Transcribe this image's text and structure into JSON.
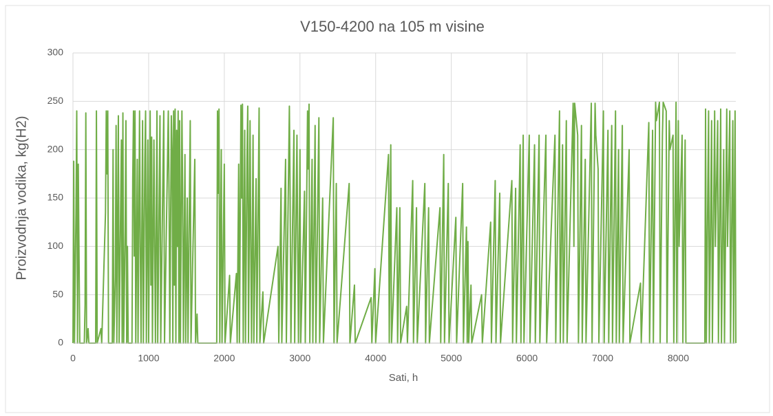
{
  "chart_data": {
    "type": "line",
    "title": "V150-4200 na 105 m visine",
    "x_label": "Sati, h",
    "y_label": "Proizvodnja vodika, kg(H2)",
    "xlim": [
      0,
      8760
    ],
    "xticks": [
      0,
      1000,
      2000,
      3000,
      4000,
      5000,
      6000,
      7000,
      8000
    ],
    "ylim": [
      0,
      300
    ],
    "yticks": [
      0,
      50,
      100,
      150,
      200,
      250,
      300
    ],
    "grid": true,
    "series": [
      {
        "color": "#70ad47",
        "x": [
          0,
          10,
          20,
          40,
          50,
          60,
          70,
          90,
          150,
          160,
          170,
          180,
          200,
          210,
          300,
          310,
          320,
          370,
          380,
          430,
          440,
          450,
          460,
          470,
          520,
          530,
          540,
          560,
          570,
          580,
          600,
          610,
          640,
          650,
          660,
          670,
          690,
          700,
          710,
          720,
          730,
          780,
          790,
          800,
          810,
          820,
          830,
          850,
          860,
          880,
          890,
          900,
          920,
          930,
          950,
          960,
          970,
          990,
          1000,
          1020,
          1030,
          1040,
          1050,
          1070,
          1080,
          1090,
          1110,
          1120,
          1150,
          1160,
          1200,
          1210,
          1260,
          1270,
          1280,
          1300,
          1310,
          1320,
          1330,
          1340,
          1350,
          1360,
          1370,
          1380,
          1390,
          1400,
          1410,
          1420,
          1440,
          1450,
          1460,
          1480,
          1490,
          1510,
          1520,
          1550,
          1560,
          1610,
          1620,
          1640,
          1650,
          1900,
          1910,
          1920,
          1930,
          1940,
          1960,
          1970,
          2000,
          2010,
          2070,
          2080,
          2160,
          2170,
          2190,
          2200,
          2220,
          2230,
          2240,
          2250,
          2270,
          2280,
          2300,
          2310,
          2320,
          2340,
          2350,
          2360,
          2380,
          2390,
          2420,
          2430,
          2460,
          2470,
          2510,
          2520,
          2710,
          2720,
          2750,
          2760,
          2810,
          2820,
          2860,
          2870,
          2880,
          2920,
          2930,
          2960,
          2970,
          2980,
          3000,
          3010,
          3060,
          3070,
          3100,
          3110,
          3120,
          3130,
          3160,
          3170,
          3200,
          3210,
          3250,
          3260,
          3300,
          3310,
          3440,
          3450,
          3480,
          3490,
          3650,
          3660,
          3720,
          3730,
          3940,
          3950,
          3990,
          4000,
          4170,
          4180,
          4200,
          4210,
          4280,
          4290,
          4320,
          4330,
          4410,
          4420,
          4490,
          4500,
          4540,
          4550,
          4650,
          4660,
          4700,
          4710,
          4850,
          4860,
          4900,
          4910,
          4960,
          4970,
          5060,
          5070,
          5150,
          5160,
          5200,
          5210,
          5220,
          5230,
          5260,
          5270,
          5400,
          5410,
          5520,
          5530,
          5580,
          5590,
          5640,
          5650,
          5800,
          5810,
          5850,
          5860,
          5910,
          5920,
          5950,
          5960,
          6030,
          6040,
          6100,
          6110,
          6160,
          6170,
          6250,
          6260,
          6370,
          6380,
          6430,
          6440,
          6470,
          6480,
          6520,
          6530,
          6610,
          6620,
          6630,
          6670,
          6680,
          6720,
          6730,
          6770,
          6780,
          6850,
          6860,
          6900,
          6910,
          6940,
          6950,
          7010,
          7020,
          7070,
          7080,
          7120,
          7130,
          7170,
          7180,
          7210,
          7220,
          7260,
          7270,
          7350,
          7360,
          7500,
          7510,
          7610,
          7620,
          7660,
          7670,
          7700,
          7710,
          7750,
          7760,
          7790,
          7800,
          7840,
          7850,
          7880,
          7890,
          7930,
          7940,
          7970,
          7980,
          8000,
          8010,
          8050,
          8060,
          8090,
          8100,
          8110,
          8350,
          8360,
          8370,
          8400,
          8410,
          8440,
          8450,
          8480,
          8490,
          8520,
          8530,
          8560,
          8570,
          8600,
          8610,
          8640,
          8650,
          8680,
          8690,
          8720,
          8730,
          8750,
          8760
        ],
        "values": [
          0,
          188,
          0,
          135,
          240,
          0,
          185,
          0,
          0,
          40,
          238,
          0,
          15,
          0,
          0,
          240,
          0,
          15,
          0,
          135,
          240,
          175,
          240,
          0,
          0,
          200,
          0,
          68,
          225,
          0,
          235,
          0,
          210,
          0,
          238,
          0,
          118,
          230,
          0,
          100,
          0,
          0,
          170,
          240,
          90,
          240,
          0,
          190,
          0,
          240,
          100,
          0,
          230,
          0,
          190,
          240,
          0,
          210,
          0,
          240,
          60,
          213,
          0,
          210,
          100,
          0,
          240,
          0,
          235,
          0,
          240,
          0,
          240,
          150,
          0,
          235,
          200,
          0,
          240,
          60,
          242,
          0,
          220,
          100,
          240,
          0,
          230,
          0,
          240,
          150,
          0,
          195,
          0,
          150,
          0,
          230,
          0,
          190,
          0,
          30,
          0,
          0,
          240,
          155,
          242,
          0,
          200,
          0,
          185,
          0,
          70,
          0,
          72,
          0,
          185,
          0,
          246,
          150,
          247,
          0,
          220,
          0,
          190,
          245,
          0,
          230,
          100,
          0,
          215,
          0,
          170,
          0,
          243,
          0,
          53,
          0,
          100,
          0,
          160,
          0,
          190,
          0,
          245,
          150,
          0,
          220,
          0,
          215,
          100,
          0,
          200,
          0,
          157,
          0,
          240,
          180,
          247,
          0,
          190,
          0,
          225,
          0,
          233,
          0,
          150,
          0,
          233,
          0,
          165,
          0,
          165,
          0,
          60,
          0,
          47,
          0,
          77,
          0,
          195,
          0,
          205,
          0,
          140,
          0,
          140,
          0,
          38,
          0,
          168,
          0,
          140,
          0,
          165,
          0,
          140,
          0,
          140,
          0,
          195,
          0,
          165,
          0,
          130,
          0,
          165,
          0,
          120,
          0,
          105,
          0,
          60,
          0,
          50,
          0,
          125,
          0,
          168,
          0,
          155,
          0,
          168,
          0,
          160,
          0,
          205,
          0,
          215,
          0,
          215,
          0,
          205,
          0,
          215,
          0,
          215,
          0,
          215,
          0,
          240,
          0,
          205,
          0,
          230,
          0,
          248,
          100,
          248,
          215,
          0,
          225,
          0,
          190,
          0,
          248,
          0,
          248,
          215,
          180,
          0,
          240,
          0,
          220,
          0,
          225,
          0,
          240,
          0,
          200,
          0,
          225,
          0,
          200,
          0,
          62,
          0,
          228,
          0,
          220,
          0,
          249,
          230,
          249,
          0,
          215,
          249,
          240,
          0,
          230,
          200,
          215,
          0,
          249,
          0,
          230,
          100,
          215,
          0,
          210,
          0,
          0,
          0,
          242,
          0,
          240,
          0,
          230,
          0,
          240,
          100,
          230,
          0,
          242,
          0,
          200,
          0,
          242,
          100,
          240,
          0,
          230,
          0,
          240,
          0
        ]
      }
    ]
  }
}
